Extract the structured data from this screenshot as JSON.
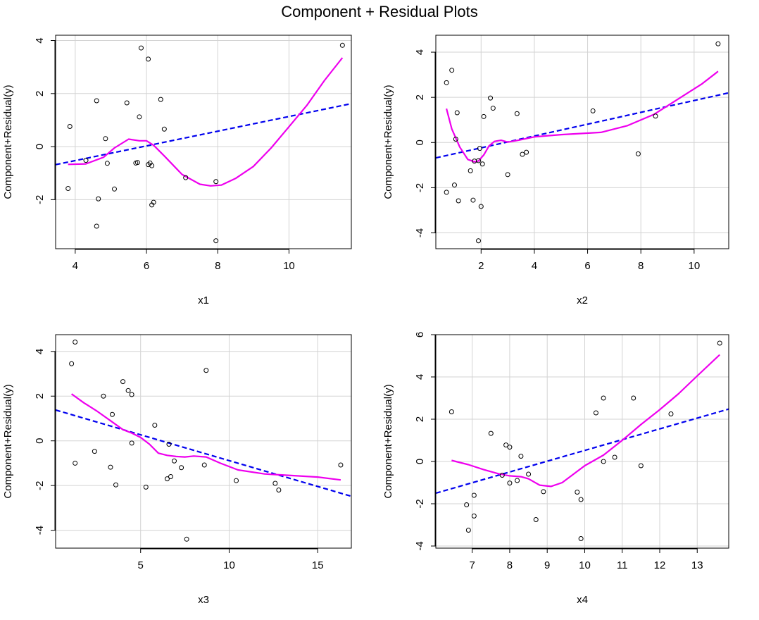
{
  "figure": {
    "title": "Component + Residual Plots"
  },
  "colors": {
    "grid": "#d3d3d3",
    "fit": "#0000ee",
    "smooth": "#ee00ee",
    "points": "#000000",
    "frame": "#000000"
  },
  "chart_data": [
    {
      "type": "scatter",
      "xlabel": "x1",
      "ylabel": "Component+Residual(y)",
      "xlim": [
        3.45,
        11.75
      ],
      "ylim": [
        -3.85,
        4.2
      ],
      "xticks": [
        4,
        6,
        8,
        10
      ],
      "yticks": [
        -2,
        0,
        2,
        4
      ],
      "points": [
        [
          3.8,
          -1.58
        ],
        [
          3.85,
          0.76
        ],
        [
          4.3,
          -0.52
        ],
        [
          4.6,
          1.73
        ],
        [
          4.6,
          -3.0
        ],
        [
          4.65,
          -1.97
        ],
        [
          4.85,
          0.3
        ],
        [
          4.9,
          -0.63
        ],
        [
          5.1,
          -1.6
        ],
        [
          5.45,
          1.65
        ],
        [
          5.7,
          -0.62
        ],
        [
          5.75,
          -0.6
        ],
        [
          5.8,
          1.12
        ],
        [
          5.85,
          3.72
        ],
        [
          6.05,
          -0.68
        ],
        [
          6.05,
          3.3
        ],
        [
          6.1,
          -0.62
        ],
        [
          6.15,
          -2.2
        ],
        [
          6.15,
          -0.72
        ],
        [
          6.2,
          -2.1
        ],
        [
          6.4,
          1.78
        ],
        [
          6.5,
          0.66
        ],
        [
          7.1,
          -1.17
        ],
        [
          7.95,
          -3.55
        ],
        [
          7.95,
          -1.32
        ],
        [
          11.5,
          3.82
        ]
      ],
      "fit_line": [
        [
          3.45,
          -0.68
        ],
        [
          11.75,
          1.62
        ]
      ],
      "smooth": [
        [
          3.8,
          -0.67
        ],
        [
          4.3,
          -0.65
        ],
        [
          4.8,
          -0.4
        ],
        [
          5.1,
          -0.05
        ],
        [
          5.5,
          0.28
        ],
        [
          5.8,
          0.22
        ],
        [
          6.0,
          0.22
        ],
        [
          6.2,
          0.05
        ],
        [
          6.5,
          -0.35
        ],
        [
          7.0,
          -1.05
        ],
        [
          7.5,
          -1.42
        ],
        [
          7.8,
          -1.48
        ],
        [
          8.1,
          -1.45
        ],
        [
          8.5,
          -1.2
        ],
        [
          9.0,
          -0.75
        ],
        [
          9.5,
          -0.05
        ],
        [
          10.0,
          0.75
        ],
        [
          10.5,
          1.55
        ],
        [
          11.0,
          2.5
        ],
        [
          11.5,
          3.35
        ]
      ]
    },
    {
      "type": "scatter",
      "xlabel": "x2",
      "ylabel": "Component+Residual(y)",
      "xlim": [
        0.3,
        11.3
      ],
      "ylim": [
        -4.7,
        4.75
      ],
      "xticks": [
        2,
        4,
        6,
        8,
        10
      ],
      "yticks": [
        -4,
        -2,
        0,
        2,
        4
      ],
      "points": [
        [
          0.7,
          2.65
        ],
        [
          0.7,
          -2.2
        ],
        [
          0.9,
          3.2
        ],
        [
          1.0,
          -1.88
        ],
        [
          1.05,
          0.15
        ],
        [
          1.1,
          1.32
        ],
        [
          1.15,
          -2.58
        ],
        [
          1.6,
          -1.25
        ],
        [
          1.7,
          -2.55
        ],
        [
          1.75,
          -0.82
        ],
        [
          1.9,
          -0.8
        ],
        [
          1.9,
          -4.35
        ],
        [
          1.95,
          -0.26
        ],
        [
          2.0,
          -2.83
        ],
        [
          2.05,
          -0.95
        ],
        [
          2.1,
          1.15
        ],
        [
          2.35,
          1.97
        ],
        [
          2.45,
          1.52
        ],
        [
          3.0,
          -1.42
        ],
        [
          3.35,
          1.28
        ],
        [
          3.55,
          -0.52
        ],
        [
          3.7,
          -0.43
        ],
        [
          6.2,
          1.4
        ],
        [
          7.9,
          -0.5
        ],
        [
          8.55,
          1.17
        ],
        [
          10.9,
          4.37
        ]
      ],
      "fit_line": [
        [
          0.3,
          -0.68
        ],
        [
          11.3,
          2.2
        ]
      ],
      "smooth": [
        [
          0.7,
          1.5
        ],
        [
          0.9,
          0.6
        ],
        [
          1.2,
          -0.2
        ],
        [
          1.5,
          -0.75
        ],
        [
          1.75,
          -0.85
        ],
        [
          1.9,
          -0.82
        ],
        [
          2.1,
          -0.55
        ],
        [
          2.3,
          -0.15
        ],
        [
          2.5,
          0.05
        ],
        [
          2.75,
          0.1
        ],
        [
          3.0,
          0.02
        ],
        [
          3.4,
          0.1
        ],
        [
          4.0,
          0.25
        ],
        [
          5.0,
          0.35
        ],
        [
          6.5,
          0.45
        ],
        [
          7.5,
          0.75
        ],
        [
          8.5,
          1.25
        ],
        [
          9.5,
          2.0
        ],
        [
          10.3,
          2.6
        ],
        [
          10.9,
          3.15
        ]
      ]
    },
    {
      "type": "scatter",
      "xlabel": "x3",
      "ylabel": "Component+Residual(y)",
      "xlim": [
        0.2,
        16.9
      ],
      "ylim": [
        -4.8,
        4.75
      ],
      "xticks": [
        5,
        10,
        15
      ],
      "yticks": [
        -4,
        -2,
        0,
        2,
        4
      ],
      "points": [
        [
          1.1,
          3.45
        ],
        [
          1.3,
          -1.0
        ],
        [
          1.3,
          4.42
        ],
        [
          2.4,
          -0.47
        ],
        [
          2.9,
          2.0
        ],
        [
          3.3,
          -1.18
        ],
        [
          3.4,
          1.18
        ],
        [
          3.6,
          -1.97
        ],
        [
          4.0,
          2.65
        ],
        [
          4.3,
          2.25
        ],
        [
          4.5,
          2.07
        ],
        [
          4.5,
          -0.1
        ],
        [
          5.3,
          -2.07
        ],
        [
          5.8,
          0.7
        ],
        [
          6.5,
          -1.7
        ],
        [
          6.6,
          -0.15
        ],
        [
          6.7,
          -1.6
        ],
        [
          6.9,
          -0.9
        ],
        [
          7.3,
          -1.2
        ],
        [
          7.6,
          -4.4
        ],
        [
          8.6,
          -1.08
        ],
        [
          8.7,
          3.15
        ],
        [
          10.4,
          -1.78
        ],
        [
          12.6,
          -1.9
        ],
        [
          12.8,
          -2.2
        ],
        [
          16.3,
          -1.08
        ]
      ],
      "fit_line": [
        [
          0.2,
          1.38
        ],
        [
          16.9,
          -2.48
        ]
      ],
      "smooth": [
        [
          1.1,
          2.1
        ],
        [
          1.8,
          1.7
        ],
        [
          2.5,
          1.35
        ],
        [
          3.3,
          0.9
        ],
        [
          4.0,
          0.5
        ],
        [
          4.5,
          0.35
        ],
        [
          5.0,
          0.15
        ],
        [
          5.5,
          -0.15
        ],
        [
          6.0,
          -0.55
        ],
        [
          6.5,
          -0.65
        ],
        [
          7.0,
          -0.7
        ],
        [
          7.5,
          -0.72
        ],
        [
          8.0,
          -0.68
        ],
        [
          8.7,
          -0.72
        ],
        [
          9.5,
          -1.0
        ],
        [
          10.5,
          -1.3
        ],
        [
          12.0,
          -1.48
        ],
        [
          13.5,
          -1.55
        ],
        [
          15.0,
          -1.62
        ],
        [
          16.3,
          -1.75
        ]
      ]
    },
    {
      "type": "scatter",
      "xlabel": "x4",
      "ylabel": "Component+Residual(y)",
      "xlim": [
        6.03,
        13.84
      ],
      "ylim": [
        -4.1,
        6.0
      ],
      "xticks": [
        7,
        8,
        9,
        10,
        11,
        12,
        13
      ],
      "yticks": [
        -4,
        -2,
        0,
        2,
        4,
        6
      ],
      "points": [
        [
          6.45,
          2.35
        ],
        [
          6.85,
          -2.05
        ],
        [
          6.9,
          -3.25
        ],
        [
          7.05,
          -1.6
        ],
        [
          7.05,
          -2.58
        ],
        [
          7.5,
          1.33
        ],
        [
          7.8,
          -0.65
        ],
        [
          7.9,
          0.78
        ],
        [
          8.0,
          -1.02
        ],
        [
          8.0,
          0.68
        ],
        [
          8.2,
          -0.9
        ],
        [
          8.3,
          0.25
        ],
        [
          8.5,
          -0.6
        ],
        [
          8.7,
          -2.75
        ],
        [
          8.9,
          -1.43
        ],
        [
          9.8,
          -1.45
        ],
        [
          9.9,
          -3.65
        ],
        [
          9.9,
          -1.8
        ],
        [
          10.3,
          2.3
        ],
        [
          10.5,
          0.0
        ],
        [
          10.5,
          3.0
        ],
        [
          10.8,
          0.2
        ],
        [
          11.3,
          3.0
        ],
        [
          11.5,
          -0.2
        ],
        [
          12.3,
          2.25
        ],
        [
          13.6,
          5.6
        ]
      ],
      "fit_line": [
        [
          6.03,
          -1.5
        ],
        [
          13.84,
          2.48
        ]
      ],
      "smooth": [
        [
          6.45,
          0.05
        ],
        [
          6.9,
          -0.15
        ],
        [
          7.3,
          -0.38
        ],
        [
          7.7,
          -0.58
        ],
        [
          8.0,
          -0.68
        ],
        [
          8.3,
          -0.72
        ],
        [
          8.5,
          -0.82
        ],
        [
          8.8,
          -1.12
        ],
        [
          9.1,
          -1.18
        ],
        [
          9.4,
          -1.0
        ],
        [
          9.7,
          -0.6
        ],
        [
          10.0,
          -0.2
        ],
        [
          10.5,
          0.3
        ],
        [
          11.0,
          1.0
        ],
        [
          11.5,
          1.75
        ],
        [
          12.0,
          2.45
        ],
        [
          12.5,
          3.2
        ],
        [
          13.0,
          4.05
        ],
        [
          13.6,
          5.05
        ]
      ]
    }
  ]
}
